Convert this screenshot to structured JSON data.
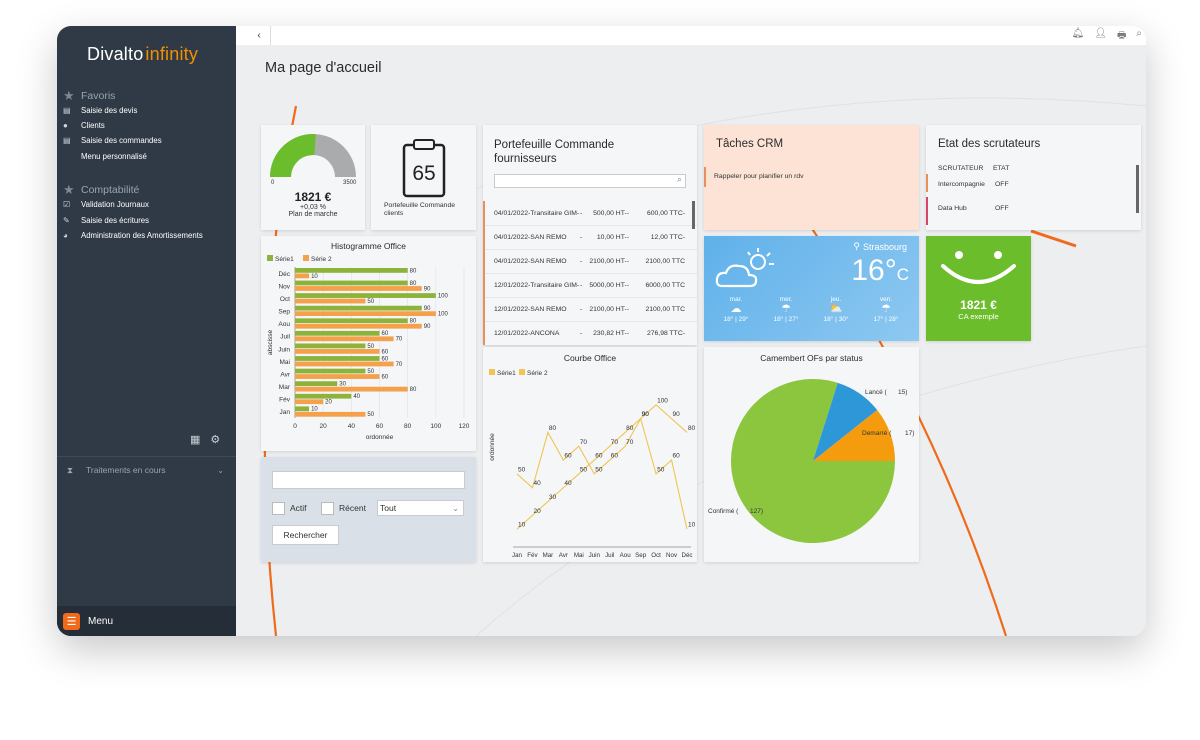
{
  "app": {
    "logo_a": "Divalto",
    "logo_b": "infinity"
  },
  "sidebar": {
    "section_favoris": "Favoris",
    "favoris": [
      {
        "label": "Saisie des devis",
        "icon": "briefcase-icon"
      },
      {
        "label": "Clients",
        "icon": "person-icon"
      },
      {
        "label": "Saisie des commandes",
        "icon": "briefcase-icon"
      },
      {
        "label": "Menu personnalisé",
        "icon": ""
      }
    ],
    "section_compta": "Comptabilité",
    "compta": [
      {
        "label": "Validation Journaux",
        "icon": "checkbox-icon"
      },
      {
        "label": "Saisie des écritures",
        "icon": "edit-icon"
      },
      {
        "label": "Administration des Amortissements",
        "icon": "piggy-bank-icon"
      }
    ],
    "traitements": "Traitements en cours",
    "menu": "Menu"
  },
  "page": {
    "title": "Ma page d'accueil",
    "back_glyph": "‹"
  },
  "gauge": {
    "amount": "1821 €",
    "change": "+0,03 %",
    "label": "Plan de marche",
    "min": "0",
    "max": "3500",
    "value": 1821,
    "range_max": 3500
  },
  "portefeuille_tile": {
    "number": "65",
    "label": "Portefeuille Commande clients"
  },
  "fournisseurs": {
    "title": "Portefeuille Commande fournisseurs",
    "rows": [
      {
        "ref": "04/01/2022-Transitaire GIM-",
        "sep": "-",
        "ht": "500,00 HT--",
        "ttc": "600,00 TTC-"
      },
      {
        "ref": "04/01/2022-SAN REMO",
        "sep": "-",
        "ht": "10,00 HT--",
        "ttc": "12,00 TTC-"
      },
      {
        "ref": "04/01/2022-SAN REMO",
        "sep": "-",
        "ht": "2100,00 HT--",
        "ttc": "2100,00 TTC"
      },
      {
        "ref": "12/01/2022-Transitaire GIM-",
        "sep": "-",
        "ht": "5000,00 HT--",
        "ttc": "6000,00 TTC"
      },
      {
        "ref": "12/01/2022-SAN REMO",
        "sep": "-",
        "ht": "2100,00 HT--",
        "ttc": "2100,00 TTC"
      },
      {
        "ref": "12/01/2022-ANCONA",
        "sep": "-",
        "ht": "230,82 HT--",
        "ttc": "276,98 TTC-"
      }
    ]
  },
  "crm": {
    "title": "Tâches CRM",
    "item": "Rappeler pour planifier un rdv"
  },
  "scrutateurs": {
    "title": "Etat des scrutateurs",
    "col1": "SCRUTATEUR",
    "col2": "ETAT",
    "rows": [
      {
        "name": "Intercompagnie",
        "state": "OFF"
      },
      {
        "name": "Data Hub",
        "state": "OFF"
      }
    ]
  },
  "weather": {
    "city": "Strasbourg",
    "temp": "16°",
    "unit": "C",
    "days": [
      {
        "day": "mar.",
        "range": "18° | 29°",
        "icon": "cloud-icon"
      },
      {
        "day": "mer.",
        "range": "18° | 27°",
        "icon": "rain-cloud-icon"
      },
      {
        "day": "jeu.",
        "range": "18° | 30°",
        "icon": "sun-cloud-icon"
      },
      {
        "day": "ven.",
        "range": "17° | 28°",
        "icon": "rain-cloud-icon"
      }
    ]
  },
  "ca_tile": {
    "amount": "1821 €",
    "label": "CA exemple",
    "color": "#6cbd2c"
  },
  "filter": {
    "actif": "Actif",
    "recent": "Récent",
    "select_value": "Tout",
    "search_button": "Rechercher"
  },
  "chart_data": [
    {
      "type": "bar",
      "title": "Histogramme Office",
      "xlabel": "ordonnée",
      "ylabel": "abscisse",
      "categories": [
        "Déc",
        "Nov",
        "Oct",
        "Sep",
        "Aou",
        "Juil",
        "Juin",
        "Mai",
        "Avr",
        "Mar",
        "Fév",
        "Jan"
      ],
      "series": [
        {
          "name": "Série1",
          "color": "#8db33a",
          "values": [
            80,
            80,
            100,
            90,
            80,
            60,
            50,
            60,
            50,
            30,
            40,
            10
          ]
        },
        {
          "name": "Série 2",
          "color": "#f5a04a",
          "values": [
            10,
            90,
            50,
            100,
            90,
            70,
            60,
            70,
            60,
            80,
            20,
            50
          ]
        }
      ],
      "xticks": [
        "0",
        "20",
        "40",
        "60",
        "80",
        "100",
        "120"
      ],
      "xlim": [
        0,
        120
      ],
      "legend": "top-left"
    },
    {
      "type": "line",
      "title": "Courbe Office",
      "xlabel": "abscisse",
      "ylabel": "ordonnée",
      "categories": [
        "Jan",
        "Fév",
        "Mar",
        "Avr",
        "Mai",
        "Juin",
        "Juil",
        "Aou",
        "Sep",
        "Oct",
        "Nov",
        "Déc"
      ],
      "series": [
        {
          "name": "Série1",
          "color": "#f1c453",
          "values": [
            50,
            40,
            80,
            60,
            70,
            50,
            60,
            70,
            90,
            100,
            90,
            80
          ]
        },
        {
          "name": "Série 2",
          "color": "#f1c453",
          "values": [
            10,
            20,
            30,
            40,
            50,
            60,
            70,
            80,
            90,
            50,
            60,
            10
          ]
        }
      ],
      "ylim": [
        0,
        110
      ],
      "legend": "top-left"
    },
    {
      "type": "pie",
      "title": "Camembert OFs par status",
      "labels": [
        "Confirmé (",
        "Lancé (",
        "Demarré ("
      ],
      "value_labels": [
        "127)",
        "15)",
        "17)"
      ],
      "values": [
        127,
        15,
        17
      ],
      "colors": [
        "#8cc63f",
        "#2e97d8",
        "#f49c0d"
      ]
    }
  ]
}
